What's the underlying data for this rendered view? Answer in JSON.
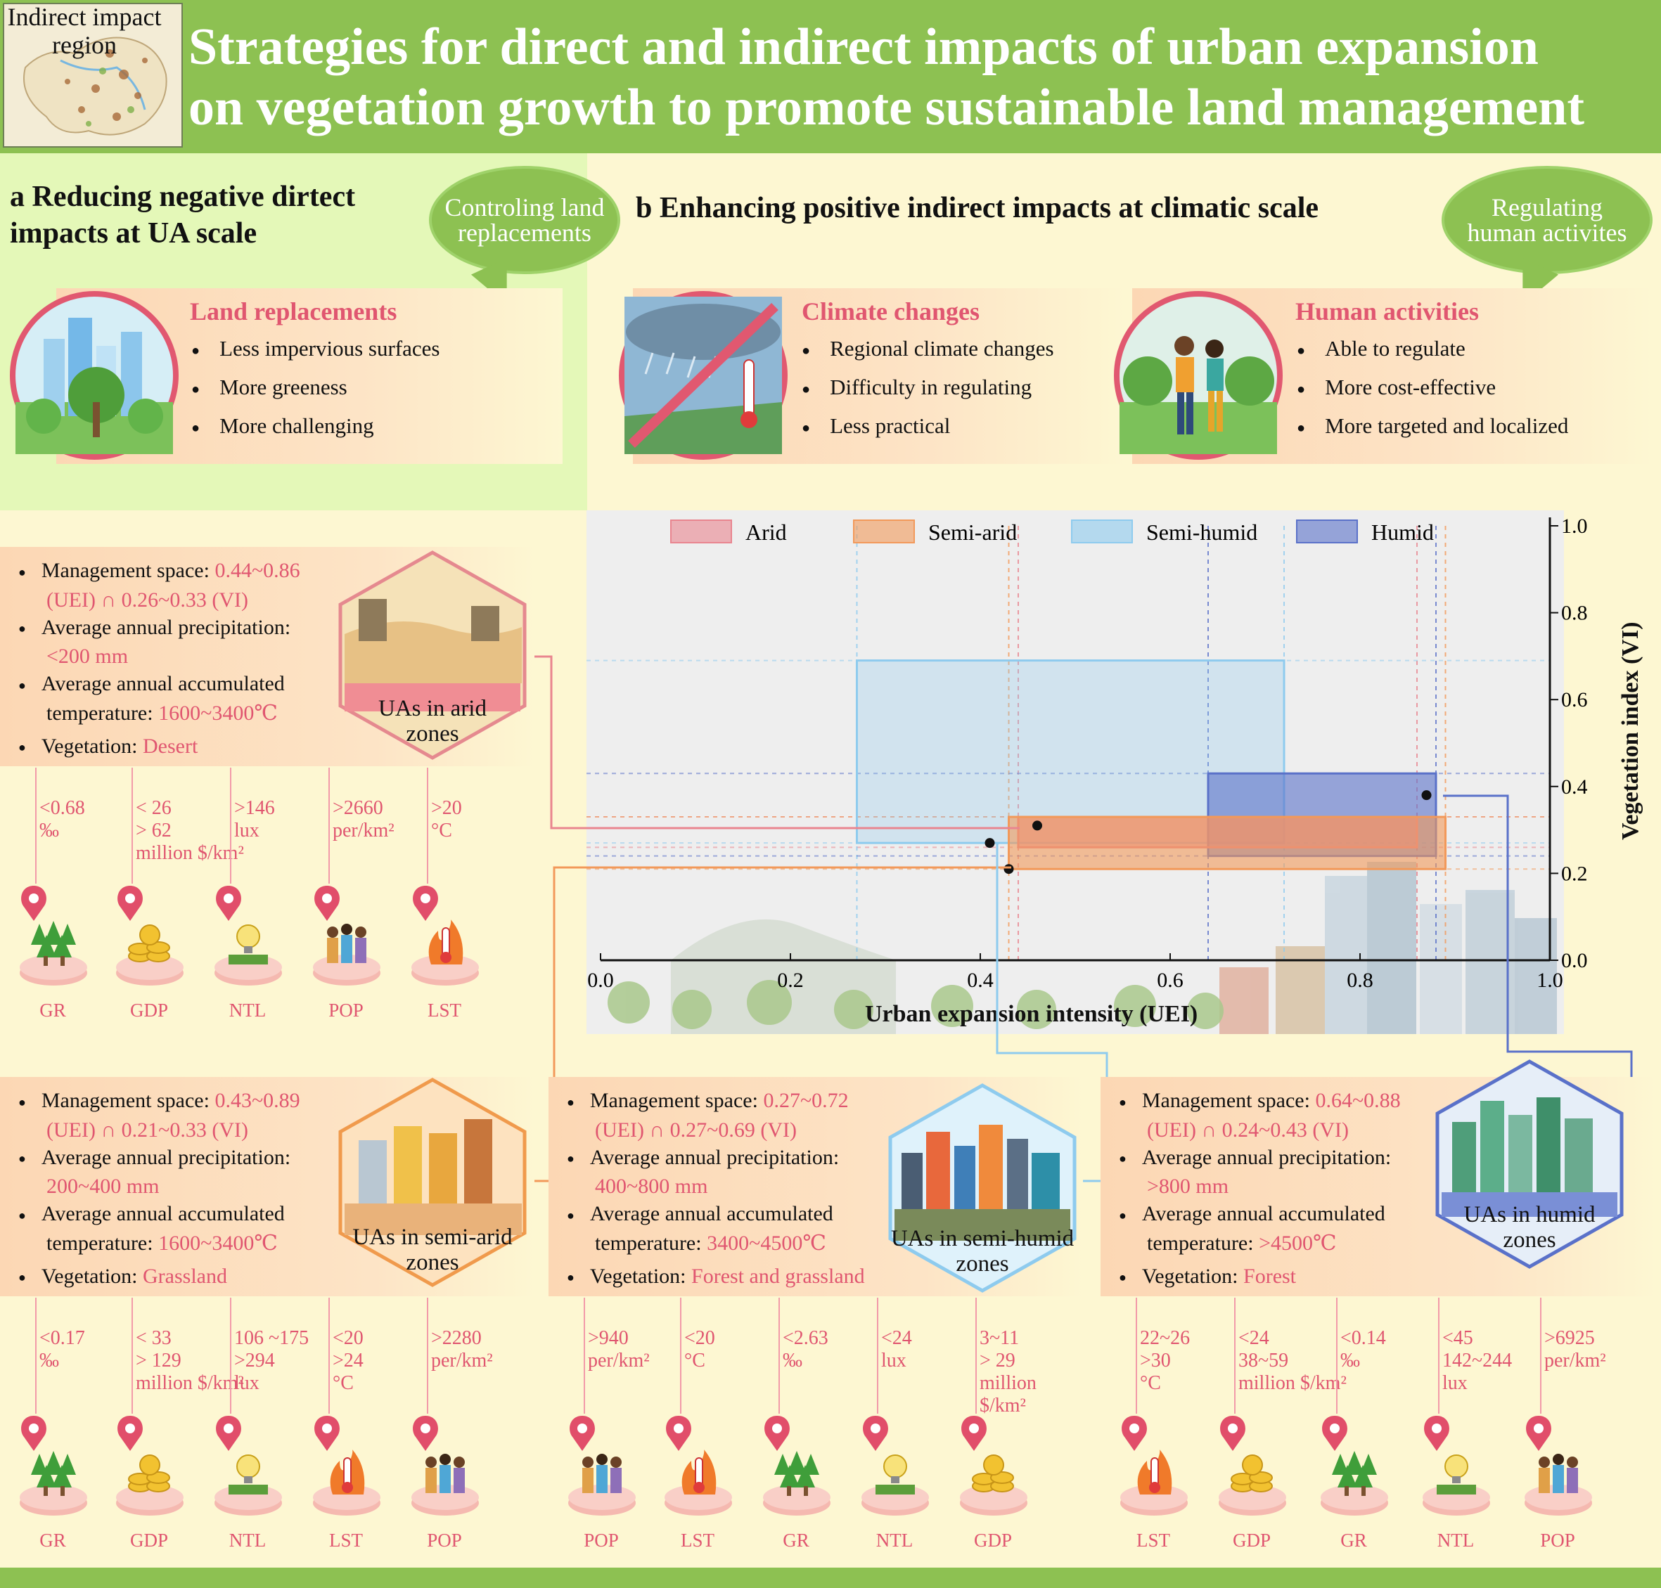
{
  "header": {
    "map_label": "Indirect impact\nregion",
    "title": "Strategies for direct and indirect impacts  of urban expansion\non vegetation growth to promote sustainable land management"
  },
  "panel_a": {
    "title": "a  Reducing negative dirtect\nimpacts at UA scale",
    "bubble": "Controling land\nreplacements",
    "strategy": {
      "title": "Land replacements",
      "items": [
        "Less impervious surfaces",
        "More greeness",
        "More challenging"
      ]
    }
  },
  "panel_b": {
    "title": "b  Enhancing positive indirect impacts at  climatic scale",
    "bubble": "Regulating\nhuman activites",
    "climate": {
      "title": "Climate changes",
      "items": [
        "Regional climate changes",
        "Difficulty in regulating",
        "Less practical"
      ]
    },
    "human": {
      "title": "Human activities",
      "items": [
        "Able to regulate",
        "More cost-effective",
        "More targeted and localized"
      ]
    }
  },
  "chart_data": {
    "type": "rectangles",
    "xlabel": "Urban expansion intensity (UEI)",
    "ylabel": "Vegetation index (VI)",
    "xlim": [
      0.0,
      1.0
    ],
    "ylim": [
      0.0,
      1.0
    ],
    "xticks": [
      "0.0",
      "0.2",
      "0.4",
      "0.6",
      "0.8",
      "1.0"
    ],
    "yticks": [
      "0.0",
      "0.2",
      "0.4",
      "0.6",
      "0.8",
      "1.0"
    ],
    "legend_position": "top",
    "series": [
      {
        "name": "Arid",
        "x": [
          0.44,
          0.86
        ],
        "y": [
          0.26,
          0.33
        ],
        "color": "#e9858f"
      },
      {
        "name": "Semi-arid",
        "x": [
          0.43,
          0.89
        ],
        "y": [
          0.21,
          0.33
        ],
        "color": "#f2995a"
      },
      {
        "name": "Semi-humid",
        "x": [
          0.27,
          0.72
        ],
        "y": [
          0.27,
          0.69
        ],
        "color": "#8ecbee"
      },
      {
        "name": "Humid",
        "x": [
          0.64,
          0.88
        ],
        "y": [
          0.24,
          0.43
        ],
        "color": "#5a71c9"
      }
    ]
  },
  "zones": {
    "arid": {
      "mgmt_label": "Management space: ",
      "mgmt_uei": "0.44~0.86",
      "mgmt_mid": "(UEI) ∩ ",
      "mgmt_vi": "0.26~0.33 (VI)",
      "precip_label": "Average annual precipitation:",
      "precip": "<200 mm",
      "temp_label1": "Average annual accumulated",
      "temp_label2": "temperature:  ",
      "temp": "1600~3400℃",
      "veg_label": "Vegetation: ",
      "veg": "Desert",
      "hex_label": "UAs in arid\nzones",
      "indicators": [
        {
          "value": "<0.68\n‰",
          "name": "GR"
        },
        {
          "value": "< 26\n> 62\nmillion $/km²",
          "name": "GDP"
        },
        {
          "value": ">146\nlux",
          "name": "NTL"
        },
        {
          "value": ">2660\nper/km²",
          "name": "POP"
        },
        {
          "value": ">20\n°C",
          "name": "LST"
        }
      ]
    },
    "semi_arid": {
      "mgmt_label": "Management space: ",
      "mgmt_uei": "0.43~0.89",
      "mgmt_mid": "(UEI) ∩ ",
      "mgmt_vi": "0.21~0.33 (VI)",
      "precip_label": "Average annual precipitation:",
      "precip": "200~400 mm",
      "temp_label1": "Average annual accumulated",
      "temp_label2": "temperature:  ",
      "temp": "1600~3400℃",
      "veg_label": "Vegetation: ",
      "veg": "Grassland",
      "hex_label": "UAs in semi-arid\nzones",
      "indicators": [
        {
          "value": "<0.17\n‰",
          "name": "GR"
        },
        {
          "value": "< 33\n> 129\nmillion $/km²",
          "name": "GDP"
        },
        {
          "value": "106 ~175\n>294\nlux",
          "name": "NTL"
        },
        {
          "value": "<20\n>24\n°C",
          "name": "LST"
        },
        {
          "value": ">2280\nper/km²",
          "name": "POP"
        }
      ]
    },
    "semi_humid": {
      "mgmt_label": "Management space: ",
      "mgmt_uei": "0.27~0.72",
      "mgmt_mid": "(UEI) ∩ ",
      "mgmt_vi": "0.27~0.69 (VI)",
      "precip_label": "Average annual precipitation:",
      "precip": "400~800 mm",
      "temp_label1": "Average annual accumulated",
      "temp_label2": "temperature:  ",
      "temp": "3400~4500℃",
      "veg_label": "Vegetation: ",
      "veg": "Forest and grassland",
      "hex_label": "UAs in semi-humid\nzones",
      "indicators": [
        {
          "value": ">940\nper/km²",
          "name": "POP"
        },
        {
          "value": "<20\n°C",
          "name": "LST"
        },
        {
          "value": "<2.63\n‰",
          "name": "GR"
        },
        {
          "value": "<24\nlux",
          "name": "NTL"
        },
        {
          "value": "3~11\n> 29\nmillion $/km²",
          "name": "GDP"
        }
      ]
    },
    "humid": {
      "mgmt_label": "Management space: ",
      "mgmt_uei": "0.64~0.88",
      "mgmt_mid": "(UEI) ∩ ",
      "mgmt_vi": "0.24~0.43 (VI)",
      "precip_label": "Average annual precipitation:",
      "precip": ">800 mm",
      "temp_label1": "Average annual accumulated",
      "temp_label2": "temperature:  ",
      "temp": ">4500℃",
      "veg_label": "Vegetation: ",
      "veg": "Forest",
      "hex_label": "UAs in humid\nzones",
      "indicators": [
        {
          "value": "22~26\n>30\n°C",
          "name": "LST"
        },
        {
          "value": "<24\n38~59\nmillion $/km²",
          "name": "GDP"
        },
        {
          "value": "<0.14\n‰",
          "name": "GR"
        },
        {
          "value": "<45\n142~244\nlux",
          "name": "NTL"
        },
        {
          "value": ">6925\nper/km²",
          "name": "POP"
        }
      ]
    }
  },
  "colors": {
    "header_green": "#8dc152",
    "accent_pink": "#e05670",
    "arid": "#e9858f",
    "semi_arid": "#f2995a",
    "semi_humid": "#8ecbee",
    "humid": "#5a71c9"
  }
}
